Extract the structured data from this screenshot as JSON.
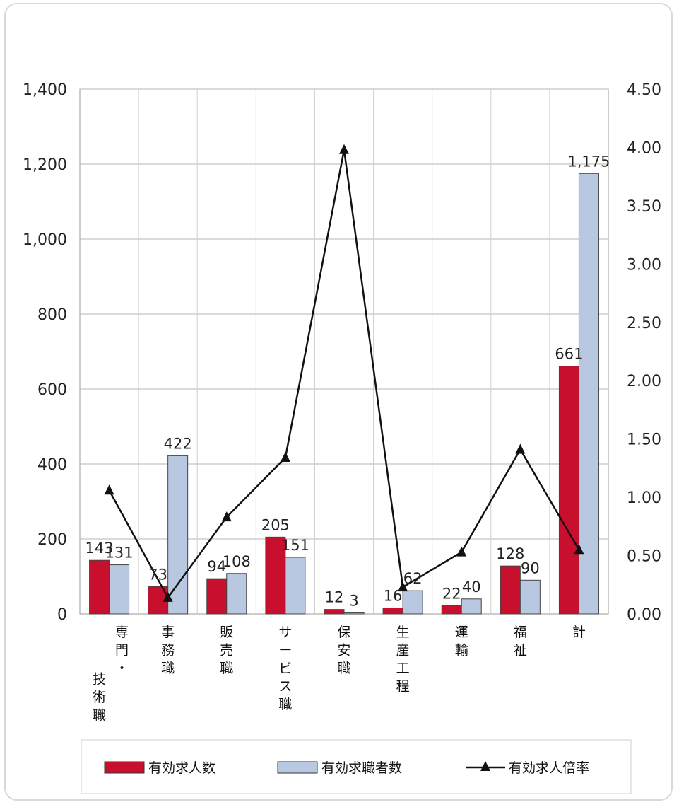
{
  "chart_data": {
    "type": "bar",
    "categories": [
      "専門・技術職",
      "事務職",
      "販売職",
      "サービス職",
      "保安職",
      "生産工程",
      "運輸",
      "福祉",
      "計"
    ],
    "category_lines": [
      [
        "専",
        "門",
        "・",
        "技",
        "術",
        "職"
      ],
      [
        "事",
        "務",
        "職"
      ],
      [
        "販",
        "売",
        "職"
      ],
      [
        "サ",
        "ー",
        "ビ",
        "ス",
        "職"
      ],
      [
        "保",
        "安",
        "職"
      ],
      [
        "生",
        "産",
        "工",
        "程"
      ],
      [
        "運",
        "輸"
      ],
      [
        "福",
        "祉"
      ],
      [
        "計"
      ]
    ],
    "series": [
      {
        "name": "有効求人数",
        "type": "bar",
        "axis": "left",
        "color": "#c8102e",
        "values": [
          143,
          73,
          94,
          205,
          12,
          16,
          22,
          128,
          661
        ],
        "labels": [
          "143",
          "73",
          "94",
          "205",
          "12",
          "16",
          "22",
          "128",
          "661"
        ]
      },
      {
        "name": "有効求職者数",
        "type": "bar",
        "axis": "left",
        "color": "#b8c8e0",
        "values": [
          131,
          422,
          108,
          151,
          3,
          62,
          40,
          90,
          1175
        ],
        "labels": [
          "131",
          "422",
          "108",
          "151",
          "3",
          "62",
          "40",
          "90",
          "1,175"
        ]
      },
      {
        "name": "有効求人倍率",
        "type": "line",
        "axis": "right",
        "color": "#111111",
        "marker": "triangle",
        "values": [
          1.06,
          0.14,
          0.83,
          1.34,
          3.98,
          0.23,
          0.53,
          1.41,
          0.55
        ]
      }
    ],
    "y_left": {
      "ylim": [
        0,
        1400
      ],
      "ticks": [
        0,
        200,
        400,
        600,
        800,
        1000,
        1200,
        1400
      ],
      "tick_labels": [
        "0",
        "200",
        "400",
        "600",
        "800",
        "1,000",
        "1,200",
        "1,400"
      ]
    },
    "y_right": {
      "ylim": [
        0,
        4.5
      ],
      "ticks": [
        0,
        0.5,
        1.0,
        1.5,
        2.0,
        2.5,
        3.0,
        3.5,
        4.0,
        4.5
      ],
      "tick_labels": [
        "0.00",
        "0.50",
        "1.00",
        "1.50",
        "2.00",
        "2.50",
        "3.00",
        "3.50",
        "4.00",
        "4.50"
      ]
    },
    "grid": true,
    "legend_position": "bottom"
  }
}
